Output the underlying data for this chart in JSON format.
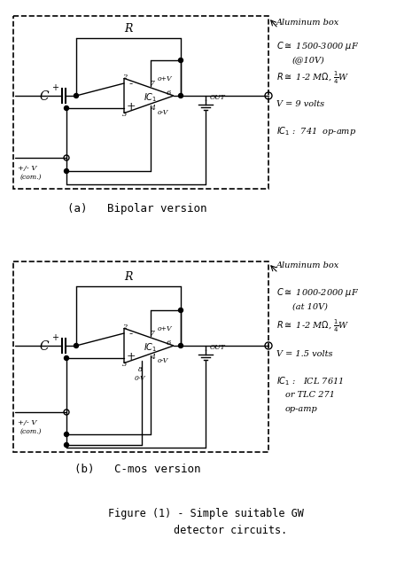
{
  "bg_color": "#ffffff",
  "line_color": "#000000",
  "fig_width": 4.65,
  "fig_height": 6.6,
  "dpi": 100,
  "title_line1": "Figure (1) - Simple suitable GW",
  "title_line2": "        detector circuits.",
  "label_a": "(a)   Bipolar version",
  "label_b": "(b)   C-mos version"
}
